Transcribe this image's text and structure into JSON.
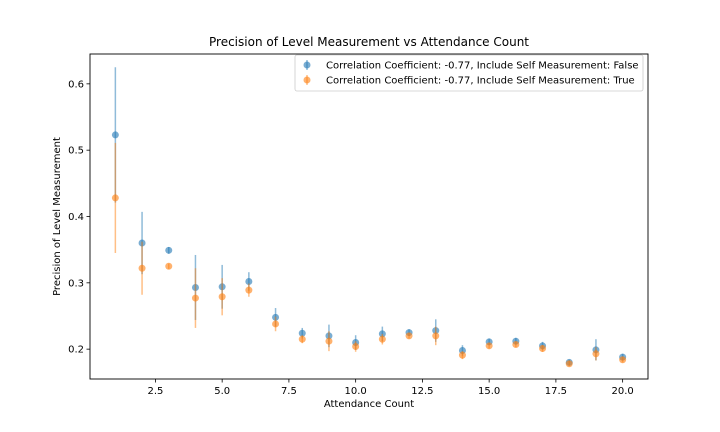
{
  "chart_data": {
    "type": "scatter",
    "title": "Precision of Level Measurement vs Attendance Count",
    "xlabel": "Attendance Count",
    "ylabel": "Precision of Level Measurement",
    "xlim": [
      0.05,
      20.95
    ],
    "ylim": [
      0.155,
      0.645
    ],
    "xticks": [
      2.5,
      5.0,
      7.5,
      10.0,
      12.5,
      15.0,
      17.5,
      20.0
    ],
    "xtick_labels": [
      "2.5",
      "5.0",
      "7.5",
      "10.0",
      "12.5",
      "15.0",
      "17.5",
      "20.0"
    ],
    "yticks": [
      0.2,
      0.3,
      0.4,
      0.5,
      0.6
    ],
    "ytick_labels": [
      "0.2",
      "0.3",
      "0.4",
      "0.5",
      "0.6"
    ],
    "grid": false,
    "legend_position": "top-right",
    "series": [
      {
        "name": "Correlation Coefficient: -0.77, Include Self Measurement: False",
        "color": "#1f77b4",
        "x": [
          1,
          2,
          3,
          4,
          5,
          6,
          7,
          8,
          9,
          10,
          11,
          12,
          13,
          14,
          15,
          16,
          17,
          18,
          19,
          20
        ],
        "y": [
          0.523,
          0.36,
          0.349,
          0.293,
          0.294,
          0.302,
          0.248,
          0.224,
          0.22,
          0.21,
          0.223,
          0.225,
          0.228,
          0.198,
          0.211,
          0.212,
          0.205,
          0.18,
          0.199,
          0.188
        ],
        "err": [
          0.102,
          0.047,
          0.005,
          0.049,
          0.033,
          0.014,
          0.014,
          0.008,
          0.017,
          0.011,
          0.011,
          0.005,
          0.017,
          0.008,
          0.005,
          0.005,
          0.006,
          0.004,
          0.016,
          0.005
        ]
      },
      {
        "name": "Correlation Coefficient: -0.77, Include Self Measurement: True",
        "color": "#ff7f0e",
        "x": [
          1,
          2,
          3,
          4,
          5,
          6,
          7,
          8,
          9,
          10,
          11,
          12,
          13,
          14,
          15,
          16,
          17,
          18,
          19,
          20
        ],
        "y": [
          0.428,
          0.322,
          0.325,
          0.277,
          0.279,
          0.289,
          0.238,
          0.215,
          0.212,
          0.204,
          0.215,
          0.22,
          0.22,
          0.191,
          0.205,
          0.207,
          0.201,
          0.178,
          0.193,
          0.184
        ],
        "err": [
          0.083,
          0.04,
          0.004,
          0.045,
          0.028,
          0.01,
          0.011,
          0.006,
          0.015,
          0.008,
          0.008,
          0.004,
          0.014,
          0.006,
          0.004,
          0.004,
          0.005,
          0.004,
          0.01,
          0.004
        ]
      }
    ]
  }
}
